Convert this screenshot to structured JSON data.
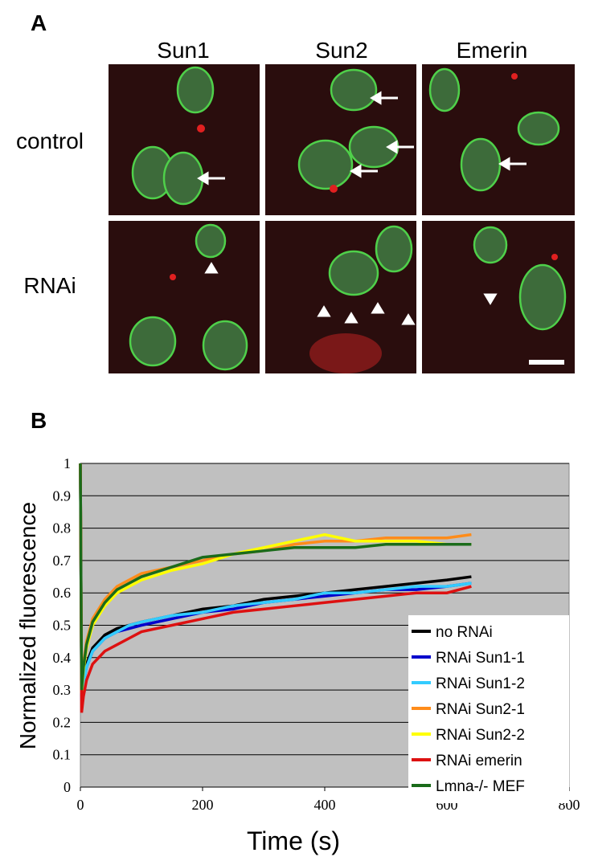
{
  "panel_a": {
    "label": "A",
    "columns": [
      "Sun1",
      "Sun2",
      "Emerin"
    ],
    "rows": [
      "control",
      "RNAi"
    ]
  },
  "chart_data": {
    "type": "line",
    "panel_label": "B",
    "x_label": "Time (s)",
    "y_label": "Normalized fluorescence",
    "x": [
      0,
      2,
      5,
      10,
      20,
      40,
      60,
      80,
      100,
      150,
      200,
      250,
      300,
      350,
      400,
      450,
      500,
      550,
      600,
      640
    ],
    "series": [
      {
        "name": "no RNAi",
        "color": "#000000",
        "values": [
          1,
          0.28,
          0.33,
          0.38,
          0.43,
          0.47,
          0.49,
          0.5,
          0.51,
          0.53,
          0.55,
          0.56,
          0.58,
          0.59,
          0.6,
          0.61,
          0.62,
          0.63,
          0.64,
          0.65
        ]
      },
      {
        "name": "RNAi Sun1-1",
        "color": "#0000cc",
        "values": [
          1,
          0.27,
          0.32,
          0.37,
          0.42,
          0.46,
          0.48,
          0.49,
          0.5,
          0.52,
          0.54,
          0.55,
          0.57,
          0.58,
          0.59,
          0.6,
          0.61,
          0.61,
          0.62,
          0.63
        ]
      },
      {
        "name": "RNAi Sun1-2",
        "color": "#33ccff",
        "values": [
          1,
          0.27,
          0.32,
          0.37,
          0.42,
          0.46,
          0.48,
          0.5,
          0.51,
          0.53,
          0.54,
          0.56,
          0.57,
          0.58,
          0.6,
          0.6,
          0.61,
          0.62,
          0.62,
          0.63
        ]
      },
      {
        "name": "RNAi Sun2-1",
        "color": "#ff8c1a",
        "values": [
          1,
          0.3,
          0.38,
          0.45,
          0.52,
          0.58,
          0.62,
          0.64,
          0.66,
          0.68,
          0.7,
          0.72,
          0.73,
          0.75,
          0.76,
          0.76,
          0.77,
          0.77,
          0.77,
          0.78
        ]
      },
      {
        "name": "RNAi Sun2-2",
        "color": "#ffff00",
        "values": [
          1,
          0.29,
          0.36,
          0.43,
          0.5,
          0.56,
          0.6,
          0.62,
          0.64,
          0.67,
          0.69,
          0.72,
          0.74,
          0.76,
          0.78,
          0.76,
          0.76,
          0.76,
          0.75,
          0.75
        ]
      },
      {
        "name": "RNAi emerin",
        "color": "#dd1111",
        "values": [
          1,
          0.23,
          0.28,
          0.33,
          0.38,
          0.42,
          0.44,
          0.46,
          0.48,
          0.5,
          0.52,
          0.54,
          0.55,
          0.56,
          0.57,
          0.58,
          0.59,
          0.6,
          0.6,
          0.62
        ]
      },
      {
        "name": "Lmna-/- MEF",
        "color": "#1a6b1a",
        "values": [
          1,
          0.3,
          0.37,
          0.44,
          0.51,
          0.57,
          0.61,
          0.63,
          0.65,
          0.68,
          0.71,
          0.72,
          0.73,
          0.74,
          0.74,
          0.74,
          0.75,
          0.75,
          0.75,
          0.75
        ]
      }
    ],
    "xlim": [
      0,
      800
    ],
    "xticks": [
      0,
      200,
      400,
      600,
      800
    ],
    "ylim": [
      0,
      1
    ],
    "yticks": [
      0,
      0.1,
      0.2,
      0.3,
      0.4,
      0.5,
      0.6,
      0.7,
      0.8,
      0.9,
      1
    ],
    "grid": true,
    "legend": "lower right"
  }
}
